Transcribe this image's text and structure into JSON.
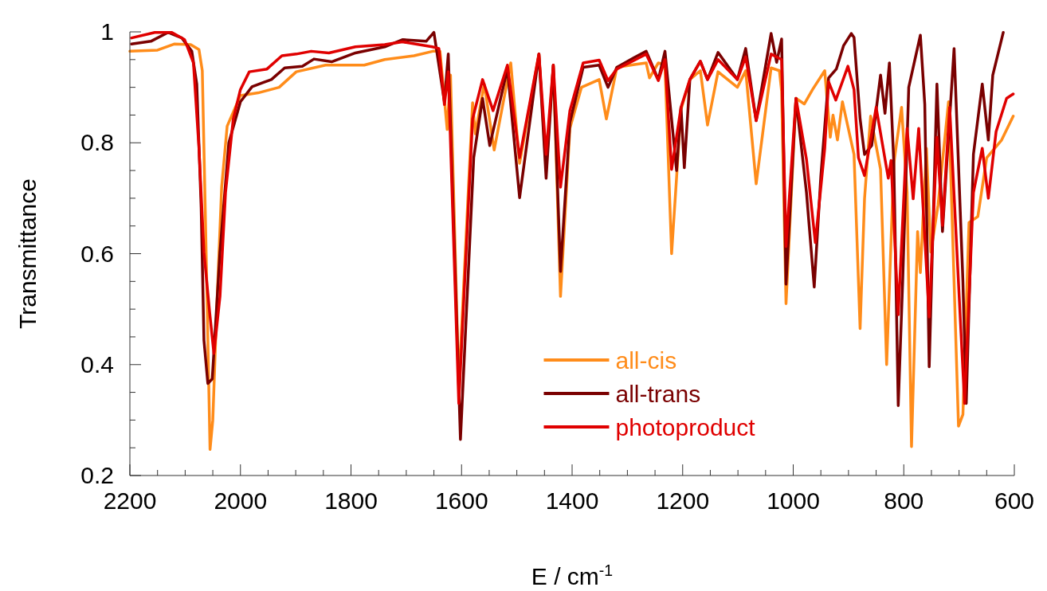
{
  "chart_data": {
    "type": "line",
    "xlabel": "E / cm$^{-1}$",
    "ylabel": "Transmittance",
    "xlim": [
      2200,
      600
    ],
    "ylim": [
      0.2,
      1
    ],
    "xticks": [
      2200,
      {
        "value": 2150,
        "label": null
      },
      {
        "value": 2100,
        "label": null
      },
      {
        "value": 2050,
        "label": null
      },
      2000,
      {
        "value": 1950,
        "label": null
      },
      {
        "value": 1900,
        "label": null
      },
      {
        "value": 1850,
        "label": null
      },
      1800,
      {
        "value": 1750,
        "label": null
      },
      {
        "value": 1700,
        "label": null
      },
      {
        "value": 1650,
        "label": null
      },
      1600,
      {
        "value": 1550,
        "label": null
      },
      {
        "value": 1500,
        "label": null
      },
      {
        "value": 1450,
        "label": null
      },
      1400,
      {
        "value": 1350,
        "label": null
      },
      {
        "value": 1300,
        "label": null
      },
      {
        "value": 1250,
        "label": null
      },
      1200,
      {
        "value": 1150,
        "label": null
      },
      {
        "value": 1100,
        "label": null
      },
      {
        "value": 1050,
        "label": null
      },
      1000,
      {
        "value": 950,
        "label": null
      },
      {
        "value": 900,
        "label": null
      },
      {
        "value": 850,
        "label": null
      },
      800,
      {
        "value": 750,
        "label": null
      },
      {
        "value": 700,
        "label": null
      },
      {
        "value": 650,
        "label": null
      },
      600
    ],
    "yticks": [
      0.2,
      {
        "value": 0.25,
        "label": null
      },
      {
        "value": 0.3,
        "label": null
      },
      {
        "value": 0.35,
        "label": null
      },
      0.4,
      {
        "value": 0.45,
        "label": null
      },
      {
        "value": 0.5,
        "label": null
      },
      {
        "value": 0.55,
        "label": null
      },
      0.6,
      {
        "value": 0.65,
        "label": null
      },
      {
        "value": 0.7,
        "label": null
      },
      {
        "value": 0.75,
        "label": null
      },
      0.8,
      {
        "value": 0.85,
        "label": null
      },
      {
        "value": 0.9,
        "label": null
      },
      {
        "value": 0.95,
        "label": null
      },
      1
    ],
    "legend": "bottom",
    "line_style": "solid",
    "series": [
      {
        "name": "all-cis",
        "color": "#ff8c1a",
        "x": [
          2200,
          2150,
          2120,
          2090,
          2075,
          2069,
          2062,
          2055,
          2050,
          2043,
          2034,
          2024,
          2000,
          1968,
          1930,
          1899,
          1846,
          1776,
          1739,
          1686,
          1652,
          1639,
          1626,
          1620,
          1605,
          1580,
          1575,
          1559,
          1541,
          1511,
          1495,
          1460,
          1447,
          1434,
          1421,
          1404,
          1383,
          1351,
          1338,
          1319,
          1287,
          1266,
          1260,
          1244,
          1232,
          1220,
          1203,
          1187,
          1168,
          1155,
          1136,
          1101,
          1086,
          1067,
          1040,
          1025,
          1021,
          1013,
          995,
          980,
          965,
          943,
          933,
          928,
          920,
          911,
          890,
          879,
          871,
          860,
          842,
          831,
          818,
          804,
          794,
          786,
          775,
          770,
          759,
          751,
          738,
          719,
          701,
          693,
          682,
          666,
          650,
          623,
          602
        ],
        "values": [
          0.965,
          0.967,
          0.978,
          0.977,
          0.968,
          0.93,
          0.6,
          0.247,
          0.3,
          0.497,
          0.72,
          0.83,
          0.885,
          0.89,
          0.9,
          0.928,
          0.94,
          0.94,
          0.95,
          0.957,
          0.965,
          0.965,
          0.824,
          0.922,
          0.36,
          0.872,
          0.816,
          0.906,
          0.787,
          0.944,
          0.763,
          0.96,
          0.752,
          0.94,
          0.523,
          0.826,
          0.9,
          0.914,
          0.843,
          0.936,
          0.941,
          0.944,
          0.917,
          0.944,
          0.94,
          0.6,
          0.86,
          0.914,
          0.93,
          0.832,
          0.928,
          0.9,
          0.93,
          0.726,
          0.935,
          0.93,
          0.893,
          0.51,
          0.88,
          0.87,
          0.896,
          0.93,
          0.81,
          0.85,
          0.805,
          0.874,
          0.779,
          0.465,
          0.699,
          0.848,
          0.752,
          0.4,
          0.763,
          0.864,
          0.71,
          0.252,
          0.64,
          0.566,
          0.79,
          0.603,
          0.688,
          0.874,
          0.289,
          0.31,
          0.656,
          0.667,
          0.773,
          0.805,
          0.848
        ]
      },
      {
        "name": "all-trans",
        "color": "#7a0000",
        "x": [
          2197,
          2162,
          2131,
          2106,
          2088,
          2079,
          2071,
          2066,
          2059,
          2051,
          2037,
          2021,
          2000,
          1979,
          1958,
          1944,
          1920,
          1888,
          1867,
          1835,
          1792,
          1739,
          1707,
          1664,
          1650,
          1631,
          1624,
          1602,
          1578,
          1562,
          1549,
          1517,
          1495,
          1460,
          1447,
          1434,
          1421,
          1404,
          1380,
          1351,
          1335,
          1319,
          1287,
          1266,
          1244,
          1232,
          1211,
          1203,
          1197,
          1187,
          1168,
          1155,
          1136,
          1101,
          1086,
          1067,
          1040,
          1030,
          1021,
          1013,
          995,
          976,
          962,
          950,
          936,
          922,
          909,
          895,
          890,
          879,
          871,
          858,
          842,
          834,
          826,
          818,
          810,
          802,
          791,
          770,
          762,
          754,
          740,
          730,
          709,
          693,
          687,
          674,
          658,
          647,
          639,
          620
        ],
        "values": [
          0.978,
          0.983,
          0.999,
          0.989,
          0.965,
          0.906,
          0.683,
          0.444,
          0.366,
          0.374,
          0.603,
          0.8,
          0.874,
          0.901,
          0.909,
          0.914,
          0.935,
          0.938,
          0.951,
          0.946,
          0.962,
          0.973,
          0.986,
          0.983,
          0.999,
          0.874,
          0.96,
          0.265,
          0.773,
          0.88,
          0.795,
          0.933,
          0.701,
          0.96,
          0.736,
          0.94,
          0.568,
          0.837,
          0.936,
          0.94,
          0.9,
          0.936,
          0.954,
          0.965,
          0.914,
          0.965,
          0.75,
          0.864,
          0.755,
          0.914,
          0.947,
          0.914,
          0.963,
          0.914,
          0.97,
          0.84,
          0.997,
          0.945,
          0.987,
          0.545,
          0.88,
          0.71,
          0.54,
          0.74,
          0.917,
          0.933,
          0.975,
          0.997,
          0.99,
          0.843,
          0.779,
          0.795,
          0.922,
          0.853,
          0.944,
          0.763,
          0.326,
          0.55,
          0.9,
          0.994,
          0.869,
          0.396,
          0.906,
          0.64,
          0.97,
          0.55,
          0.33,
          0.779,
          0.906,
          0.805,
          0.922,
          0.999
        ]
      },
      {
        "name": "photoproduct",
        "color": "#e00000",
        "x": [
          2197,
          2155,
          2124,
          2101,
          2085,
          2075,
          2066,
          2056,
          2048,
          2037,
          2027,
          2013,
          2000,
          1984,
          1952,
          1925,
          1899,
          1872,
          1840,
          1792,
          1739,
          1707,
          1653,
          1641,
          1631,
          1624,
          1605,
          1580,
          1562,
          1543,
          1517,
          1495,
          1460,
          1447,
          1434,
          1421,
          1404,
          1380,
          1351,
          1335,
          1319,
          1287,
          1266,
          1244,
          1232,
          1220,
          1203,
          1187,
          1168,
          1155,
          1136,
          1101,
          1086,
          1067,
          1040,
          1021,
          1013,
          995,
          976,
          960,
          943,
          936,
          923,
          901,
          890,
          882,
          871,
          850,
          828,
          823,
          810,
          794,
          783,
          773,
          754,
          740,
          730,
          717,
          690,
          674,
          658,
          647,
          633,
          614,
          602
        ],
        "values": [
          0.989,
          0.999,
          0.999,
          0.986,
          0.944,
          0.79,
          0.603,
          0.497,
          0.42,
          0.523,
          0.71,
          0.843,
          0.896,
          0.928,
          0.933,
          0.957,
          0.96,
          0.965,
          0.962,
          0.973,
          0.977,
          0.982,
          0.973,
          0.97,
          0.869,
          0.928,
          0.33,
          0.843,
          0.914,
          0.858,
          0.94,
          0.773,
          0.96,
          0.779,
          0.94,
          0.72,
          0.858,
          0.944,
          0.949,
          0.912,
          0.933,
          0.949,
          0.96,
          0.912,
          0.95,
          0.752,
          0.864,
          0.914,
          0.947,
          0.914,
          0.95,
          0.914,
          0.955,
          0.84,
          0.96,
          0.95,
          0.613,
          0.88,
          0.77,
          0.62,
          0.79,
          0.91,
          0.877,
          0.938,
          0.896,
          0.773,
          0.741,
          0.864,
          0.736,
          0.768,
          0.49,
          0.826,
          0.699,
          0.826,
          0.486,
          0.81,
          0.651,
          0.864,
          0.33,
          0.71,
          0.79,
          0.7,
          0.82,
          0.88,
          0.888
        ]
      }
    ]
  }
}
